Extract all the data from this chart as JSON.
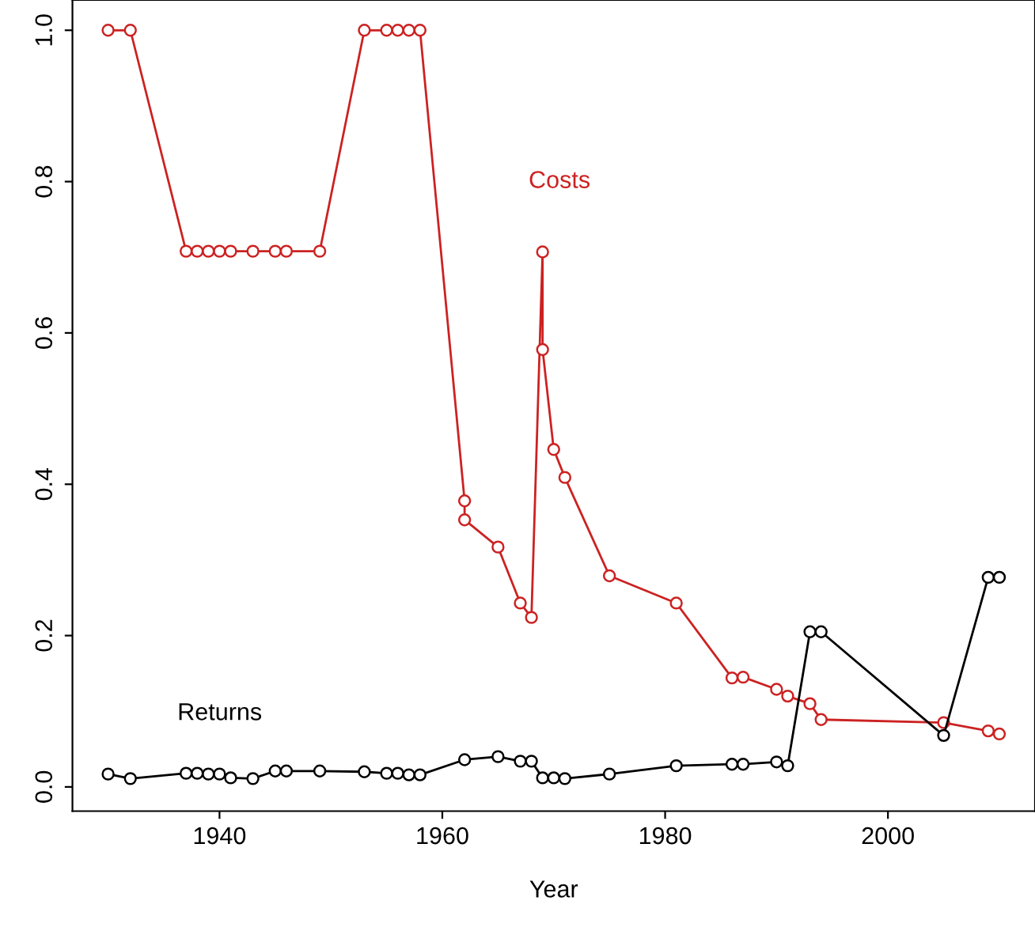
{
  "chart_data": {
    "type": "line",
    "xlabel": "Year",
    "marker": "circle",
    "line_style": "solid",
    "grid": false,
    "legend": false,
    "xlim": [
      1926.8,
      2013.2
    ],
    "xticks": [
      1940,
      1960,
      1980,
      2000
    ],
    "ylim": [
      -0.032,
      1.04
    ],
    "yticks": [
      {
        "value": 0,
        "label": "0.0"
      },
      {
        "value": 0.2,
        "label": "0.2"
      },
      {
        "value": 0.4,
        "label": "0.4"
      },
      {
        "value": 0.6,
        "label": "0.6"
      },
      {
        "value": 0.8,
        "label": "0.8"
      },
      {
        "value": 1,
        "label": "1.0"
      }
    ],
    "series": [
      {
        "name": "Costs",
        "color": "#cc2222",
        "x": [
          1930,
          1932,
          1937,
          1938,
          1939,
          1940,
          1941,
          1943,
          1945,
          1946,
          1949,
          1953,
          1955,
          1956,
          1957,
          1958,
          1962,
          1962,
          1965,
          1967,
          1968,
          1969,
          1969,
          1970,
          1971,
          1975,
          1981,
          1986,
          1987,
          1990,
          1991,
          1993,
          1994,
          2005,
          2009,
          2010
        ],
        "values": [
          1.0,
          1.0,
          0.708,
          0.708,
          0.708,
          0.708,
          0.708,
          0.708,
          0.708,
          0.708,
          0.708,
          1.0,
          1.0,
          1.0,
          1.0,
          1.0,
          0.378,
          0.353,
          0.317,
          0.243,
          0.224,
          0.707,
          0.578,
          0.446,
          0.409,
          0.279,
          0.243,
          0.144,
          0.145,
          0.129,
          0.12,
          0.11,
          0.089,
          0.085,
          0.074,
          0.07
        ]
      },
      {
        "name": "Returns",
        "color": "#000000",
        "x": [
          1930,
          1932,
          1937,
          1938,
          1939,
          1940,
          1941,
          1943,
          1945,
          1946,
          1949,
          1953,
          1955,
          1956,
          1957,
          1958,
          1962,
          1965,
          1967,
          1968,
          1969,
          1970,
          1971,
          1975,
          1981,
          1986,
          1987,
          1990,
          1991,
          1993,
          1994,
          2005,
          2009,
          2010
        ],
        "values": [
          0.017,
          0.011,
          0.018,
          0.018,
          0.017,
          0.017,
          0.012,
          0.011,
          0.021,
          0.021,
          0.021,
          0.02,
          0.018,
          0.018,
          0.016,
          0.016,
          0.036,
          0.04,
          0.034,
          0.034,
          0.012,
          0.012,
          0.011,
          0.017,
          0.028,
          0.03,
          0.03,
          0.033,
          0.028,
          0.205,
          0.205,
          0.068,
          0.277,
          0.277
        ]
      }
    ]
  }
}
